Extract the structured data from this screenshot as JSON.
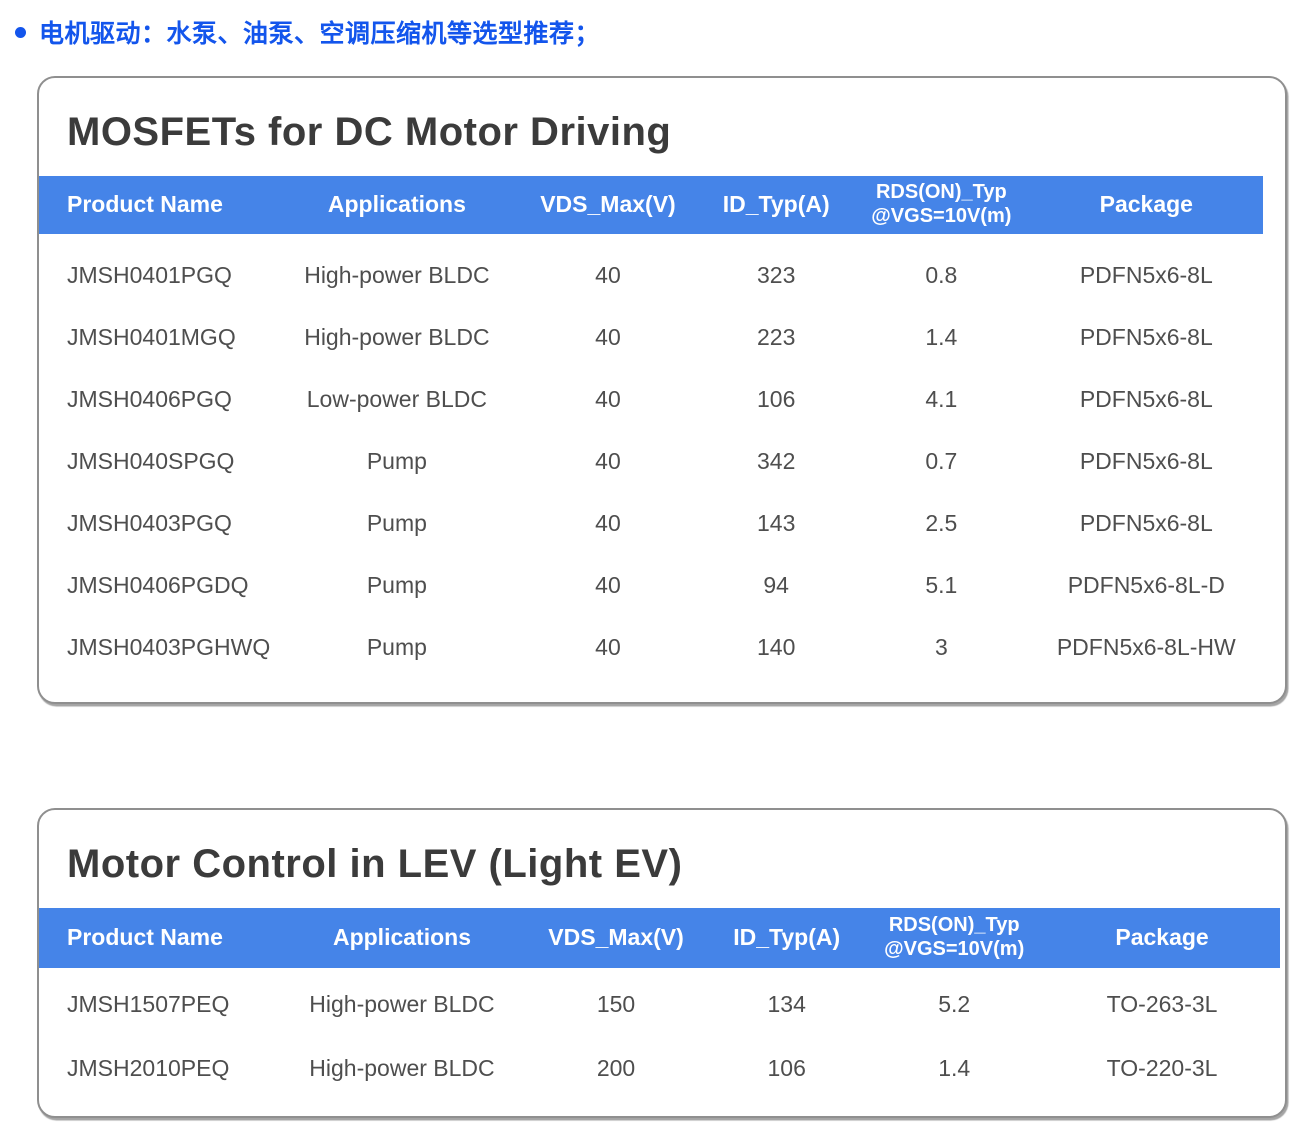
{
  "page": {
    "bullet_heading": "电机驱动：水泵、油泵、空调压缩机等选型推荐；"
  },
  "colors": {
    "heading_blue": "#1355ec",
    "table_header_blue": "#4584e8",
    "card_title_gray": "#3b3b3b",
    "cell_text_gray": "#4e4e4e",
    "card_border_gray": "#8f8f8f"
  },
  "cards": [
    {
      "title": "MOSFETs for DC Motor Driving",
      "columns": [
        {
          "key": "product-name",
          "lines": [
            "Product Name"
          ]
        },
        {
          "key": "applications",
          "lines": [
            "Applications"
          ]
        },
        {
          "key": "vds-max",
          "lines": [
            "VDS_Max(V)"
          ]
        },
        {
          "key": "id-typ",
          "lines": [
            "ID_Typ(A)"
          ]
        },
        {
          "key": "rds-on",
          "lines": [
            "RDS(ON)_Typ",
            "@VGS=10V(m)"
          ]
        },
        {
          "key": "package",
          "lines": [
            "Package"
          ]
        }
      ],
      "rows": [
        [
          "JMSH0401PGQ",
          "High-power BLDC",
          "40",
          "323",
          "0.8",
          "PDFN5x6-8L"
        ],
        [
          "JMSH0401MGQ",
          "High-power BLDC",
          "40",
          "223",
          "1.4",
          "PDFN5x6-8L"
        ],
        [
          "JMSH0406PGQ",
          "Low-power BLDC",
          "40",
          "106",
          "4.1",
          "PDFN5x6-8L"
        ],
        [
          "JMSH040SPGQ",
          "Pump",
          "40",
          "342",
          "0.7",
          "PDFN5x6-8L"
        ],
        [
          "JMSH0403PGQ",
          "Pump",
          "40",
          "143",
          "2.5",
          "PDFN5x6-8L"
        ],
        [
          "JMSH0406PGDQ",
          "Pump",
          "40",
          "94",
          "5.1",
          "PDFN5x6-8L-D"
        ],
        [
          "JMSH0403PGHWQ",
          "Pump",
          "40",
          "140",
          "3",
          "PDFN5x6-8L-HW"
        ]
      ]
    },
    {
      "title": "Motor Control in LEV (Light EV)",
      "columns": [
        {
          "key": "product-name",
          "lines": [
            "Product Name"
          ]
        },
        {
          "key": "applications",
          "lines": [
            "Applications"
          ]
        },
        {
          "key": "vds-max",
          "lines": [
            "VDS_Max(V)"
          ]
        },
        {
          "key": "id-typ",
          "lines": [
            "ID_Typ(A)"
          ]
        },
        {
          "key": "rds-on",
          "lines": [
            "RDS(ON)_Typ",
            "@VGS=10V(m)"
          ]
        },
        {
          "key": "package",
          "lines": [
            "Package"
          ]
        }
      ],
      "rows": [
        [
          "JMSH1507PEQ",
          "High-power BLDC",
          "150",
          "134",
          "5.2",
          "TO-263-3L"
        ],
        [
          "JMSH2010PEQ",
          "High-power BLDC",
          "200",
          "106",
          "1.4",
          "TO-220-3L"
        ]
      ]
    }
  ]
}
